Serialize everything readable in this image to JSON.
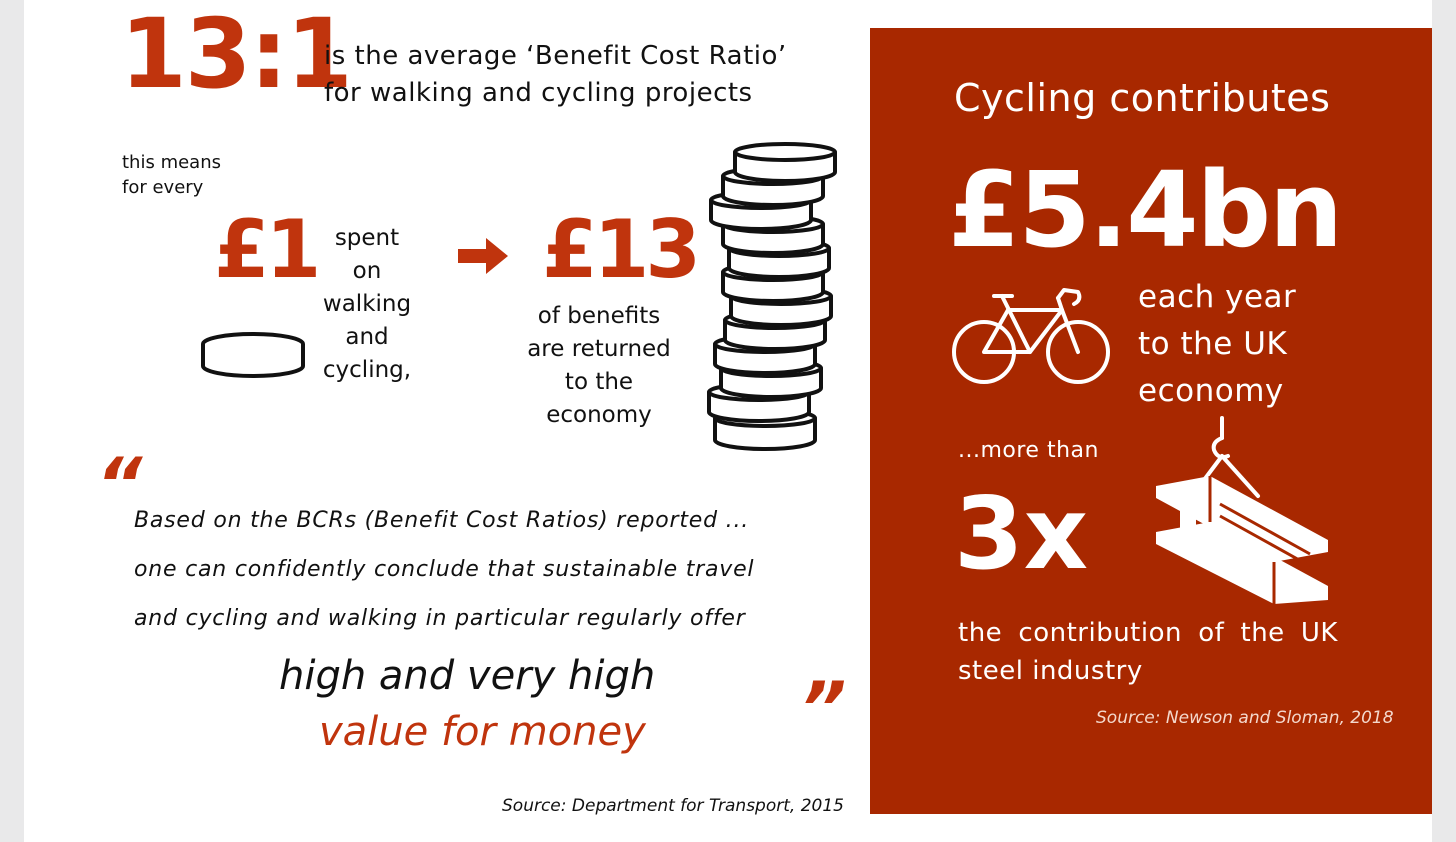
{
  "colors": {
    "accent": "#c0340d",
    "panel": "#a82800",
    "text": "#111111"
  },
  "left": {
    "ratio": "13:1",
    "ratio_line1": "is the average ‘Benefit Cost Ratio’",
    "ratio_line2": "for walking and cycling projects",
    "means_line1": "this means",
    "means_line2": "for every",
    "pound_one": "£1",
    "spent_lines": [
      "spent",
      "on",
      "walking",
      "and",
      "cycling,"
    ],
    "pound_thirteen": "£13",
    "benefit_lines": [
      "of benefits",
      "are returned",
      "to the",
      "economy"
    ],
    "quote_open": "“",
    "quote_close": "”",
    "quote_lines": [
      "Based on the BCRs (Benefit Cost Ratios) reported ...",
      "one can confidently conclude that sustainable travel",
      "and cycling and walking in particular regularly offer"
    ],
    "highlight_line1": "high and very high",
    "highlight_line2": "value for money",
    "source": "Source: Department for Transport, 2015"
  },
  "right": {
    "title": "Cycling contributes",
    "amount": "£5.4bn",
    "each_year_lines": [
      "each year",
      "to the UK",
      "economy"
    ],
    "more_than": "...more than",
    "multiplier": "3x",
    "contribution": "the contribution of the UK steel industry",
    "source": "Source: Newson and Sloman, 2018"
  },
  "icons": [
    "coin-icon",
    "coin-stack-icon",
    "arrow-right-icon",
    "bicycle-icon",
    "steel-girder-icon"
  ]
}
